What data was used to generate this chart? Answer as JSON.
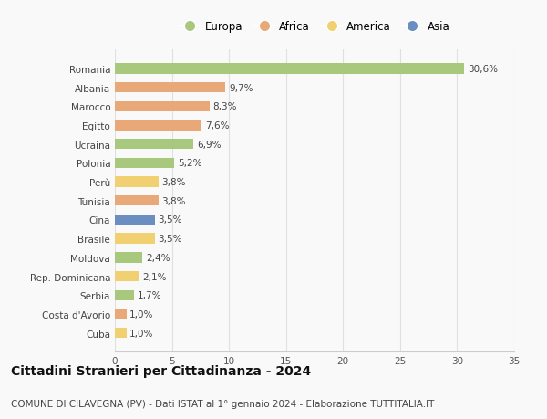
{
  "countries": [
    "Romania",
    "Albania",
    "Marocco",
    "Egitto",
    "Ucraina",
    "Polonia",
    "Perù",
    "Tunisia",
    "Cina",
    "Brasile",
    "Moldova",
    "Rep. Dominicana",
    "Serbia",
    "Costa d'Avorio",
    "Cuba"
  ],
  "values": [
    30.6,
    9.7,
    8.3,
    7.6,
    6.9,
    5.2,
    3.8,
    3.8,
    3.5,
    3.5,
    2.4,
    2.1,
    1.7,
    1.0,
    1.0
  ],
  "labels": [
    "30,6%",
    "9,7%",
    "8,3%",
    "7,6%",
    "6,9%",
    "5,2%",
    "3,8%",
    "3,8%",
    "3,5%",
    "3,5%",
    "2,4%",
    "2,1%",
    "1,7%",
    "1,0%",
    "1,0%"
  ],
  "categories": [
    "Europa",
    "Africa",
    "America",
    "Asia"
  ],
  "bar_colors": [
    "#a8c87e",
    "#e8a878",
    "#e8a878",
    "#e8a878",
    "#a8c87e",
    "#a8c87e",
    "#f0d070",
    "#e8a878",
    "#6b8ec0",
    "#f0d070",
    "#a8c87e",
    "#f0d070",
    "#a8c87e",
    "#e8a878",
    "#f0d070"
  ],
  "legend_colors": [
    "#a8c87e",
    "#e8a878",
    "#f0d070",
    "#6b8ec0"
  ],
  "xlim": [
    0,
    35
  ],
  "xticks": [
    0,
    5,
    10,
    15,
    20,
    25,
    30,
    35
  ],
  "title": "Cittadini Stranieri per Cittadinanza - 2024",
  "subtitle": "COMUNE DI CILAVEGNA (PV) - Dati ISTAT al 1° gennaio 2024 - Elaborazione TUTTITALIA.IT",
  "background_color": "#f9f9f9",
  "grid_color": "#e0e0e0",
  "bar_height": 0.55,
  "title_fontsize": 10,
  "subtitle_fontsize": 7.5,
  "label_fontsize": 7.5,
  "tick_fontsize": 7.5,
  "legend_fontsize": 8.5
}
